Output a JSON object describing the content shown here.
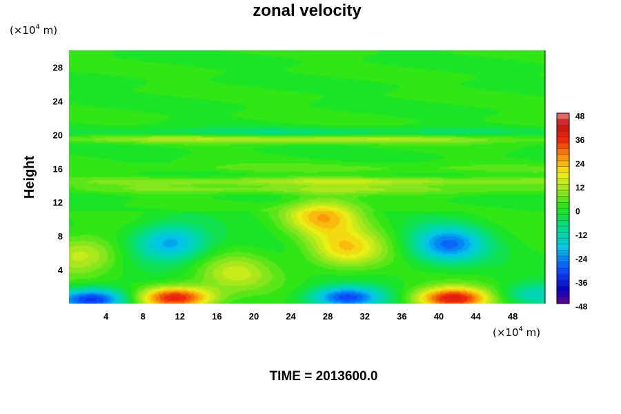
{
  "chart_data": {
    "type": "heatmap",
    "title": "zonal velocity",
    "ylabel": "Height",
    "xlabel": "",
    "x_unit": "(×10",
    "y_unit": "(×10",
    "unit_exp": "4",
    "unit_suffix": " m)",
    "x_ticks": [
      "4",
      "8",
      "12",
      "16",
      "20",
      "24",
      "28",
      "32",
      "36",
      "40",
      "44",
      "48"
    ],
    "y_ticks": [
      "4",
      "8",
      "12",
      "16",
      "20",
      "24",
      "28"
    ],
    "xlim": [
      0,
      51.5
    ],
    "ylim": [
      0,
      30
    ],
    "colorbar": {
      "ticks": [
        "48",
        "36",
        "24",
        "12",
        "0",
        "-12",
        "-24",
        "-36",
        "-48"
      ],
      "range": [
        -48,
        48
      ],
      "interval": 3
    },
    "features": [
      {
        "x": 2.5,
        "y": 0.5,
        "value": -36
      },
      {
        "x": 11.5,
        "y": 0.7,
        "value": 38
      },
      {
        "x": 30.0,
        "y": 0.7,
        "value": -32
      },
      {
        "x": 41.5,
        "y": 0.6,
        "value": 38
      },
      {
        "x": 11.0,
        "y": 7.2,
        "value": -24
      },
      {
        "x": 30.0,
        "y": 6.5,
        "value": 20
      },
      {
        "x": 41.0,
        "y": 7.0,
        "value": -27
      },
      {
        "x": 1.5,
        "y": 5.8,
        "value": 14
      },
      {
        "x": 18.0,
        "y": 3.6,
        "value": 12
      },
      {
        "x": 50.5,
        "y": 1.0,
        "value": -15
      },
      {
        "x": 27.5,
        "y": 10.3,
        "value": 22
      },
      {
        "x": 32.0,
        "y": 14.5,
        "value": 12
      },
      {
        "x": 25.0,
        "y": 19.5,
        "value": 12
      },
      {
        "x": 25.0,
        "y": 20.3,
        "value": -8
      },
      {
        "x": 25.0,
        "y": 13.5,
        "value": 7
      },
      {
        "x": 25.0,
        "y": 16.0,
        "value": 4
      }
    ],
    "bottom_label": "TIME = 2013600.0"
  }
}
